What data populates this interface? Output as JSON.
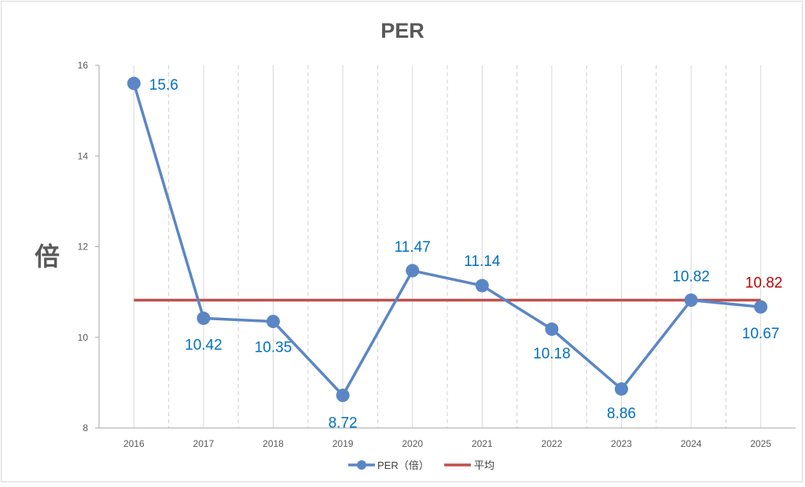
{
  "chart_data": {
    "type": "line",
    "title": "PER",
    "ylabel": "倍",
    "xlabel": "",
    "ylim": [
      8,
      16
    ],
    "yticks": [
      8,
      10,
      12,
      14,
      16
    ],
    "categories": [
      "2016",
      "2017",
      "2018",
      "2019",
      "2020",
      "2021",
      "2022",
      "2023",
      "2024",
      "2025"
    ],
    "series": [
      {
        "name": "PER（倍）",
        "color": "#5b86c5",
        "label_color": "#0070c0",
        "values": [
          15.6,
          10.42,
          10.35,
          8.72,
          11.47,
          11.14,
          10.18,
          8.86,
          10.82,
          10.67
        ],
        "labels": [
          "15.6",
          "10.42",
          "10.35",
          "8.72",
          "11.47",
          "11.14",
          "10.18",
          "8.86",
          "10.82",
          "10.67"
        ]
      },
      {
        "name": "平均",
        "color": "#c0504d",
        "label_color": "#c00000",
        "value": 10.82,
        "label": "10.82"
      }
    ],
    "grid": "vertical-dashed",
    "legend_position": "bottom"
  }
}
